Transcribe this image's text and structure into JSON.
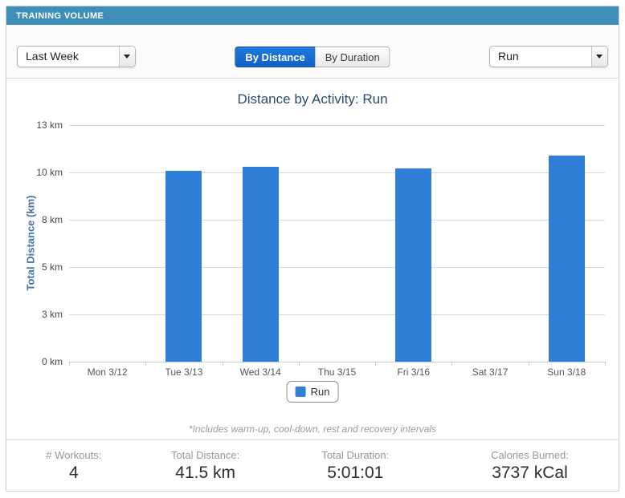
{
  "header": {
    "title": "TRAINING VOLUME"
  },
  "controls": {
    "period_select": {
      "value": "Last Week"
    },
    "toggle": {
      "by_distance": "By Distance",
      "by_duration": "By Duration",
      "active": "By Distance"
    },
    "activity_select": {
      "value": "Run"
    }
  },
  "chart_data": {
    "type": "bar",
    "title": "Distance by Activity: Run",
    "ylabel": "Total Distance (km)",
    "categories": [
      "Mon 3/12",
      "Tue 3/13",
      "Wed 3/14",
      "Thu 3/15",
      "Fri 3/16",
      "Sat 3/17",
      "Sun 3/18"
    ],
    "series": [
      {
        "name": "Run",
        "color": "#2f7ed8",
        "values": [
          0,
          10.1,
          10.3,
          0,
          10.2,
          0,
          10.9
        ]
      }
    ],
    "ylim": [
      0,
      12.5
    ],
    "yticks": [
      {
        "value": 0,
        "label": "0 km"
      },
      {
        "value": 2.5,
        "label": "3 km"
      },
      {
        "value": 5,
        "label": "5 km"
      },
      {
        "value": 7.5,
        "label": "8 km"
      },
      {
        "value": 10,
        "label": "10 km"
      },
      {
        "value": 12.5,
        "label": "13 km"
      }
    ],
    "grid": true,
    "legend": {
      "position": "bottom",
      "entries": [
        "Run"
      ]
    }
  },
  "footnote": "*Includes warm-up, cool-down, rest and recovery intervals",
  "stats": [
    {
      "label": "# Workouts:",
      "value": "4"
    },
    {
      "label": "Total Distance:",
      "value": "41.5 km"
    },
    {
      "label": "Total Duration:",
      "value": "5:01:01"
    },
    {
      "label": "Calories Burned:",
      "value": "3737 kCal"
    }
  ],
  "colors": {
    "header_bg": "#3d8eb9",
    "bar": "#2f7ed8",
    "title": "#274b6d",
    "axis_title": "#4572a7",
    "gridline": "#d8d8d8",
    "axis_line": "#c0d0e0"
  }
}
